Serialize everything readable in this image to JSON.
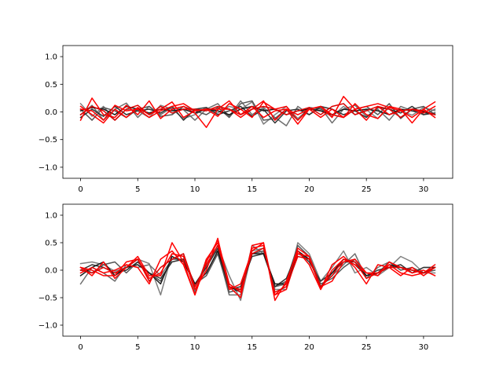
{
  "chart_data": [
    {
      "type": "line",
      "title": "",
      "xlabel": "",
      "ylabel": "",
      "xlim": [
        -1.55,
        32.55
      ],
      "ylim": [
        -1.2,
        1.2
      ],
      "xticks": [
        0,
        5,
        10,
        15,
        20,
        25,
        30
      ],
      "yticks": [
        -1.0,
        -0.5,
        0.0,
        0.5,
        1.0
      ],
      "xtick_labels": [
        "0",
        "5",
        "10",
        "15",
        "20",
        "25",
        "30"
      ],
      "ytick_labels": [
        "−1.0",
        "−0.5",
        "0.0",
        "0.5",
        "1.0"
      ],
      "grid": false,
      "series": [
        {
          "color": "#808080",
          "values": [
            0.15,
            -0.08,
            0.1,
            -0.15,
            0.05,
            0.02,
            -0.1,
            0.12,
            0.05,
            -0.12,
            -0.05,
            0.08,
            -0.02,
            0.1,
            0.05,
            0.18,
            -0.22,
            -0.05,
            0.1,
            -0.12,
            0.06,
            0.02,
            -0.08,
            0.1,
            -0.05,
            0.04,
            -0.12,
            0.08,
            0.02,
            -0.06,
            0.08,
            0.02
          ]
        },
        {
          "color": "#6e6e6e",
          "values": [
            -0.05,
            0.12,
            -0.15,
            0.05,
            0.16,
            -0.1,
            0.1,
            -0.05,
            0.08,
            0.04,
            -0.15,
            0.05,
            0.15,
            -0.08,
            0.2,
            -0.05,
            0.08,
            -0.1,
            -0.25,
            0.1,
            -0.05,
            0.08,
            -0.2,
            0.05,
            0.12,
            -0.08,
            0.05,
            -0.15,
            0.1,
            0.02,
            -0.05,
            0.05
          ]
        },
        {
          "color": "#555555",
          "values": [
            0.05,
            -0.15,
            0.08,
            0.02,
            -0.1,
            0.05,
            0.1,
            -0.08,
            -0.05,
            0.1,
            0.02,
            -0.05,
            0.08,
            -0.1,
            0.15,
            0.2,
            -0.15,
            -0.12,
            0.05,
            -0.15,
            0.08,
            0.05,
            -0.05,
            -0.1,
            0.05,
            0.1,
            -0.05,
            0.15,
            -0.12,
            0.05,
            0.1,
            -0.05
          ]
        },
        {
          "color": "#333333",
          "values": [
            -0.1,
            0.05,
            -0.08,
            0.1,
            -0.05,
            0.02,
            0.05,
            -0.02,
            0.1,
            -0.15,
            0.05,
            0.08,
            -0.05,
            0.02,
            0.1,
            -0.08,
            0.05,
            -0.2,
            0.02,
            0.05,
            -0.05,
            0.1,
            0.05,
            -0.05,
            0.02,
            -0.1,
            0.08,
            0.05,
            -0.02,
            0.1,
            -0.05,
            -0.02
          ]
        },
        {
          "color": "#1a1a1a",
          "values": [
            0.02,
            0.08,
            0.05,
            -0.05,
            0.1,
            0.05,
            -0.02,
            0.05,
            0.02,
            0.05,
            -0.02,
            0.05,
            0.02,
            -0.05,
            0.05,
            0.1,
            0.02,
            0.05,
            -0.05,
            0.02,
            0.05,
            0.02,
            -0.05,
            0.05,
            0.02,
            0.05,
            0.02,
            -0.05,
            0.05,
            0.02,
            0.0,
            -0.05
          ]
        },
        {
          "color": "#ff0000",
          "values": [
            0.1,
            -0.05,
            -0.2,
            0.05,
            -0.1,
            0.08,
            -0.05,
            0.05,
            0.18,
            -0.1,
            0.02,
            0.05,
            -0.08,
            0.15,
            0.05,
            -0.1,
            0.18,
            0.05,
            0.1,
            -0.15,
            0.05,
            0.1,
            -0.1,
            0.28,
            0.05,
            -0.15,
            0.1,
            -0.05,
            0.02,
            -0.1,
            0.05,
            -0.1
          ]
        },
        {
          "color": "#ff0000",
          "values": [
            -0.15,
            0.25,
            -0.05,
            -0.1,
            0.12,
            -0.05,
            0.2,
            -0.12,
            0.05,
            0.1,
            -0.02,
            -0.28,
            0.05,
            0.05,
            -0.1,
            0.05,
            0.2,
            -0.15,
            0.05,
            -0.22,
            0.05,
            0.1,
            -0.05,
            -0.1,
            0.15,
            -0.05,
            -0.12,
            0.1,
            0.05,
            -0.2,
            0.05,
            0.18
          ]
        },
        {
          "color": "#ff0000",
          "values": [
            0.05,
            0.02,
            -0.15,
            0.12,
            0.02,
            0.05,
            -0.1,
            0.02,
            0.1,
            0.15,
            0.02,
            0.05,
            0.05,
            0.2,
            -0.05,
            0.1,
            -0.1,
            0.02,
            0.05,
            -0.05,
            0.05,
            -0.1,
            0.05,
            -0.1,
            0.05,
            0.1,
            0.15,
            0.08,
            0.02,
            0.05,
            -0.02,
            0.1
          ]
        },
        {
          "color": "#dd0000",
          "values": [
            -0.05,
            0.1,
            0.02,
            -0.15,
            0.05,
            0.12,
            -0.05,
            0.1,
            -0.02,
            0.05,
            0.05,
            0.02,
            0.1,
            0.05,
            -0.05,
            0.05,
            0.1,
            0.05,
            -0.05,
            0.02,
            0.08,
            -0.05,
            0.1,
            0.15,
            -0.05,
            0.02,
            0.1,
            0.05,
            -0.1,
            0.05,
            0.02,
            -0.05
          ]
        }
      ]
    },
    {
      "type": "line",
      "title": "",
      "xlabel": "",
      "ylabel": "",
      "xlim": [
        -1.55,
        32.55
      ],
      "ylim": [
        -1.2,
        1.2
      ],
      "xticks": [
        0,
        5,
        10,
        15,
        20,
        25,
        30
      ],
      "yticks": [
        -1.0,
        -0.5,
        0.0,
        0.5,
        1.0
      ],
      "xtick_labels": [
        "0",
        "5",
        "10",
        "15",
        "20",
        "25",
        "30"
      ],
      "ytick_labels": [
        "−1.0",
        "−0.5",
        "0.0",
        "0.5",
        "1.0"
      ],
      "grid": false,
      "series": [
        {
          "color": "#808080",
          "values": [
            0.12,
            0.15,
            0.1,
            -0.02,
            0.05,
            0.2,
            0.12,
            -0.45,
            0.3,
            0.25,
            -0.3,
            0.05,
            0.45,
            -0.1,
            -0.55,
            0.35,
            0.4,
            -0.35,
            -0.35,
            0.5,
            0.3,
            -0.2,
            0.05,
            0.35,
            -0.05,
            0.05,
            -0.1,
            0.05,
            0.25,
            0.15,
            -0.05,
            -0.05
          ]
        },
        {
          "color": "#6e6e6e",
          "values": [
            -0.25,
            0.05,
            -0.05,
            -0.2,
            0.1,
            0.05,
            0.1,
            -0.1,
            0.2,
            0.3,
            -0.4,
            0.2,
            0.35,
            -0.45,
            -0.45,
            0.45,
            0.3,
            -0.3,
            -0.25,
            0.3,
            0.2,
            -0.3,
            -0.1,
            0.1,
            0.3,
            -0.15,
            0.05,
            0.15,
            0.05,
            -0.05,
            0.05,
            0.05
          ]
        },
        {
          "color": "#555555",
          "values": [
            0.05,
            -0.05,
            0.1,
            0.15,
            -0.05,
            0.15,
            -0.05,
            -0.2,
            0.2,
            0.2,
            -0.25,
            -0.1,
            0.3,
            -0.4,
            -0.35,
            0.3,
            0.35,
            -0.3,
            -0.2,
            0.45,
            0.25,
            -0.25,
            -0.15,
            0.05,
            0.2,
            -0.1,
            -0.05,
            0.15,
            0.0,
            0.05,
            -0.05,
            0.0
          ]
        },
        {
          "color": "#333333",
          "values": [
            0.0,
            0.1,
            0.05,
            -0.05,
            0.0,
            0.15,
            -0.05,
            -0.15,
            0.15,
            0.2,
            -0.25,
            0.05,
            0.4,
            -0.35,
            -0.3,
            0.25,
            0.3,
            -0.3,
            -0.15,
            0.35,
            0.15,
            -0.2,
            -0.05,
            0.15,
            0.15,
            -0.1,
            0.0,
            0.05,
            0.1,
            -0.05,
            0.05,
            0.05
          ]
        },
        {
          "color": "#1a1a1a",
          "values": [
            -0.1,
            0.05,
            0.15,
            -0.1,
            0.05,
            0.1,
            -0.05,
            -0.25,
            0.25,
            0.15,
            -0.25,
            -0.05,
            0.35,
            -0.3,
            -0.4,
            0.3,
            0.3,
            -0.25,
            -0.25,
            0.35,
            0.2,
            -0.3,
            -0.05,
            0.2,
            0.1,
            -0.1,
            -0.05,
            0.1,
            0.05,
            0.0,
            -0.05,
            0.05
          ]
        },
        {
          "color": "#ff0000",
          "values": [
            0.05,
            -0.1,
            0.15,
            -0.15,
            0.05,
            0.25,
            -0.1,
            -0.1,
            0.5,
            0.15,
            -0.45,
            0.2,
            0.5,
            -0.3,
            -0.5,
            0.45,
            0.5,
            -0.55,
            -0.2,
            0.35,
            0.1,
            -0.35,
            0.1,
            0.25,
            0.05,
            -0.25,
            0.1,
            0.05,
            -0.1,
            0.05,
            -0.1,
            0.05
          ]
        },
        {
          "color": "#ff0000",
          "values": [
            -0.05,
            0.05,
            -0.05,
            0.0,
            0.1,
            0.05,
            -0.25,
            0.2,
            0.35,
            0.1,
            -0.45,
            0.15,
            0.55,
            -0.25,
            -0.4,
            0.4,
            0.45,
            -0.45,
            -0.25,
            0.4,
            0.25,
            -0.35,
            0.0,
            0.2,
            0.1,
            -0.05,
            -0.1,
            0.15,
            0.05,
            -0.05,
            0.0,
            -0.1
          ]
        },
        {
          "color": "#ff0000",
          "values": [
            0.05,
            0.0,
            -0.1,
            -0.1,
            0.15,
            0.2,
            -0.15,
            -0.05,
            0.3,
            0.25,
            -0.35,
            0.0,
            0.58,
            -0.35,
            -0.25,
            0.35,
            0.5,
            -0.45,
            -0.35,
            0.3,
            0.25,
            -0.3,
            -0.2,
            0.15,
            0.2,
            -0.05,
            -0.05,
            0.1,
            -0.05,
            -0.1,
            -0.05,
            0.1
          ]
        },
        {
          "color": "#dd0000",
          "values": [
            0.0,
            -0.05,
            0.05,
            -0.05,
            0.05,
            0.2,
            -0.2,
            0.05,
            0.2,
            0.3,
            -0.3,
            0.1,
            0.45,
            -0.3,
            -0.35,
            0.3,
            0.4,
            -0.4,
            -0.3,
            0.25,
            0.2,
            -0.3,
            -0.1,
            0.2,
            0.15,
            -0.15,
            -0.05,
            0.05,
            0.05,
            0.0,
            -0.05,
            0.05
          ]
        }
      ]
    }
  ]
}
